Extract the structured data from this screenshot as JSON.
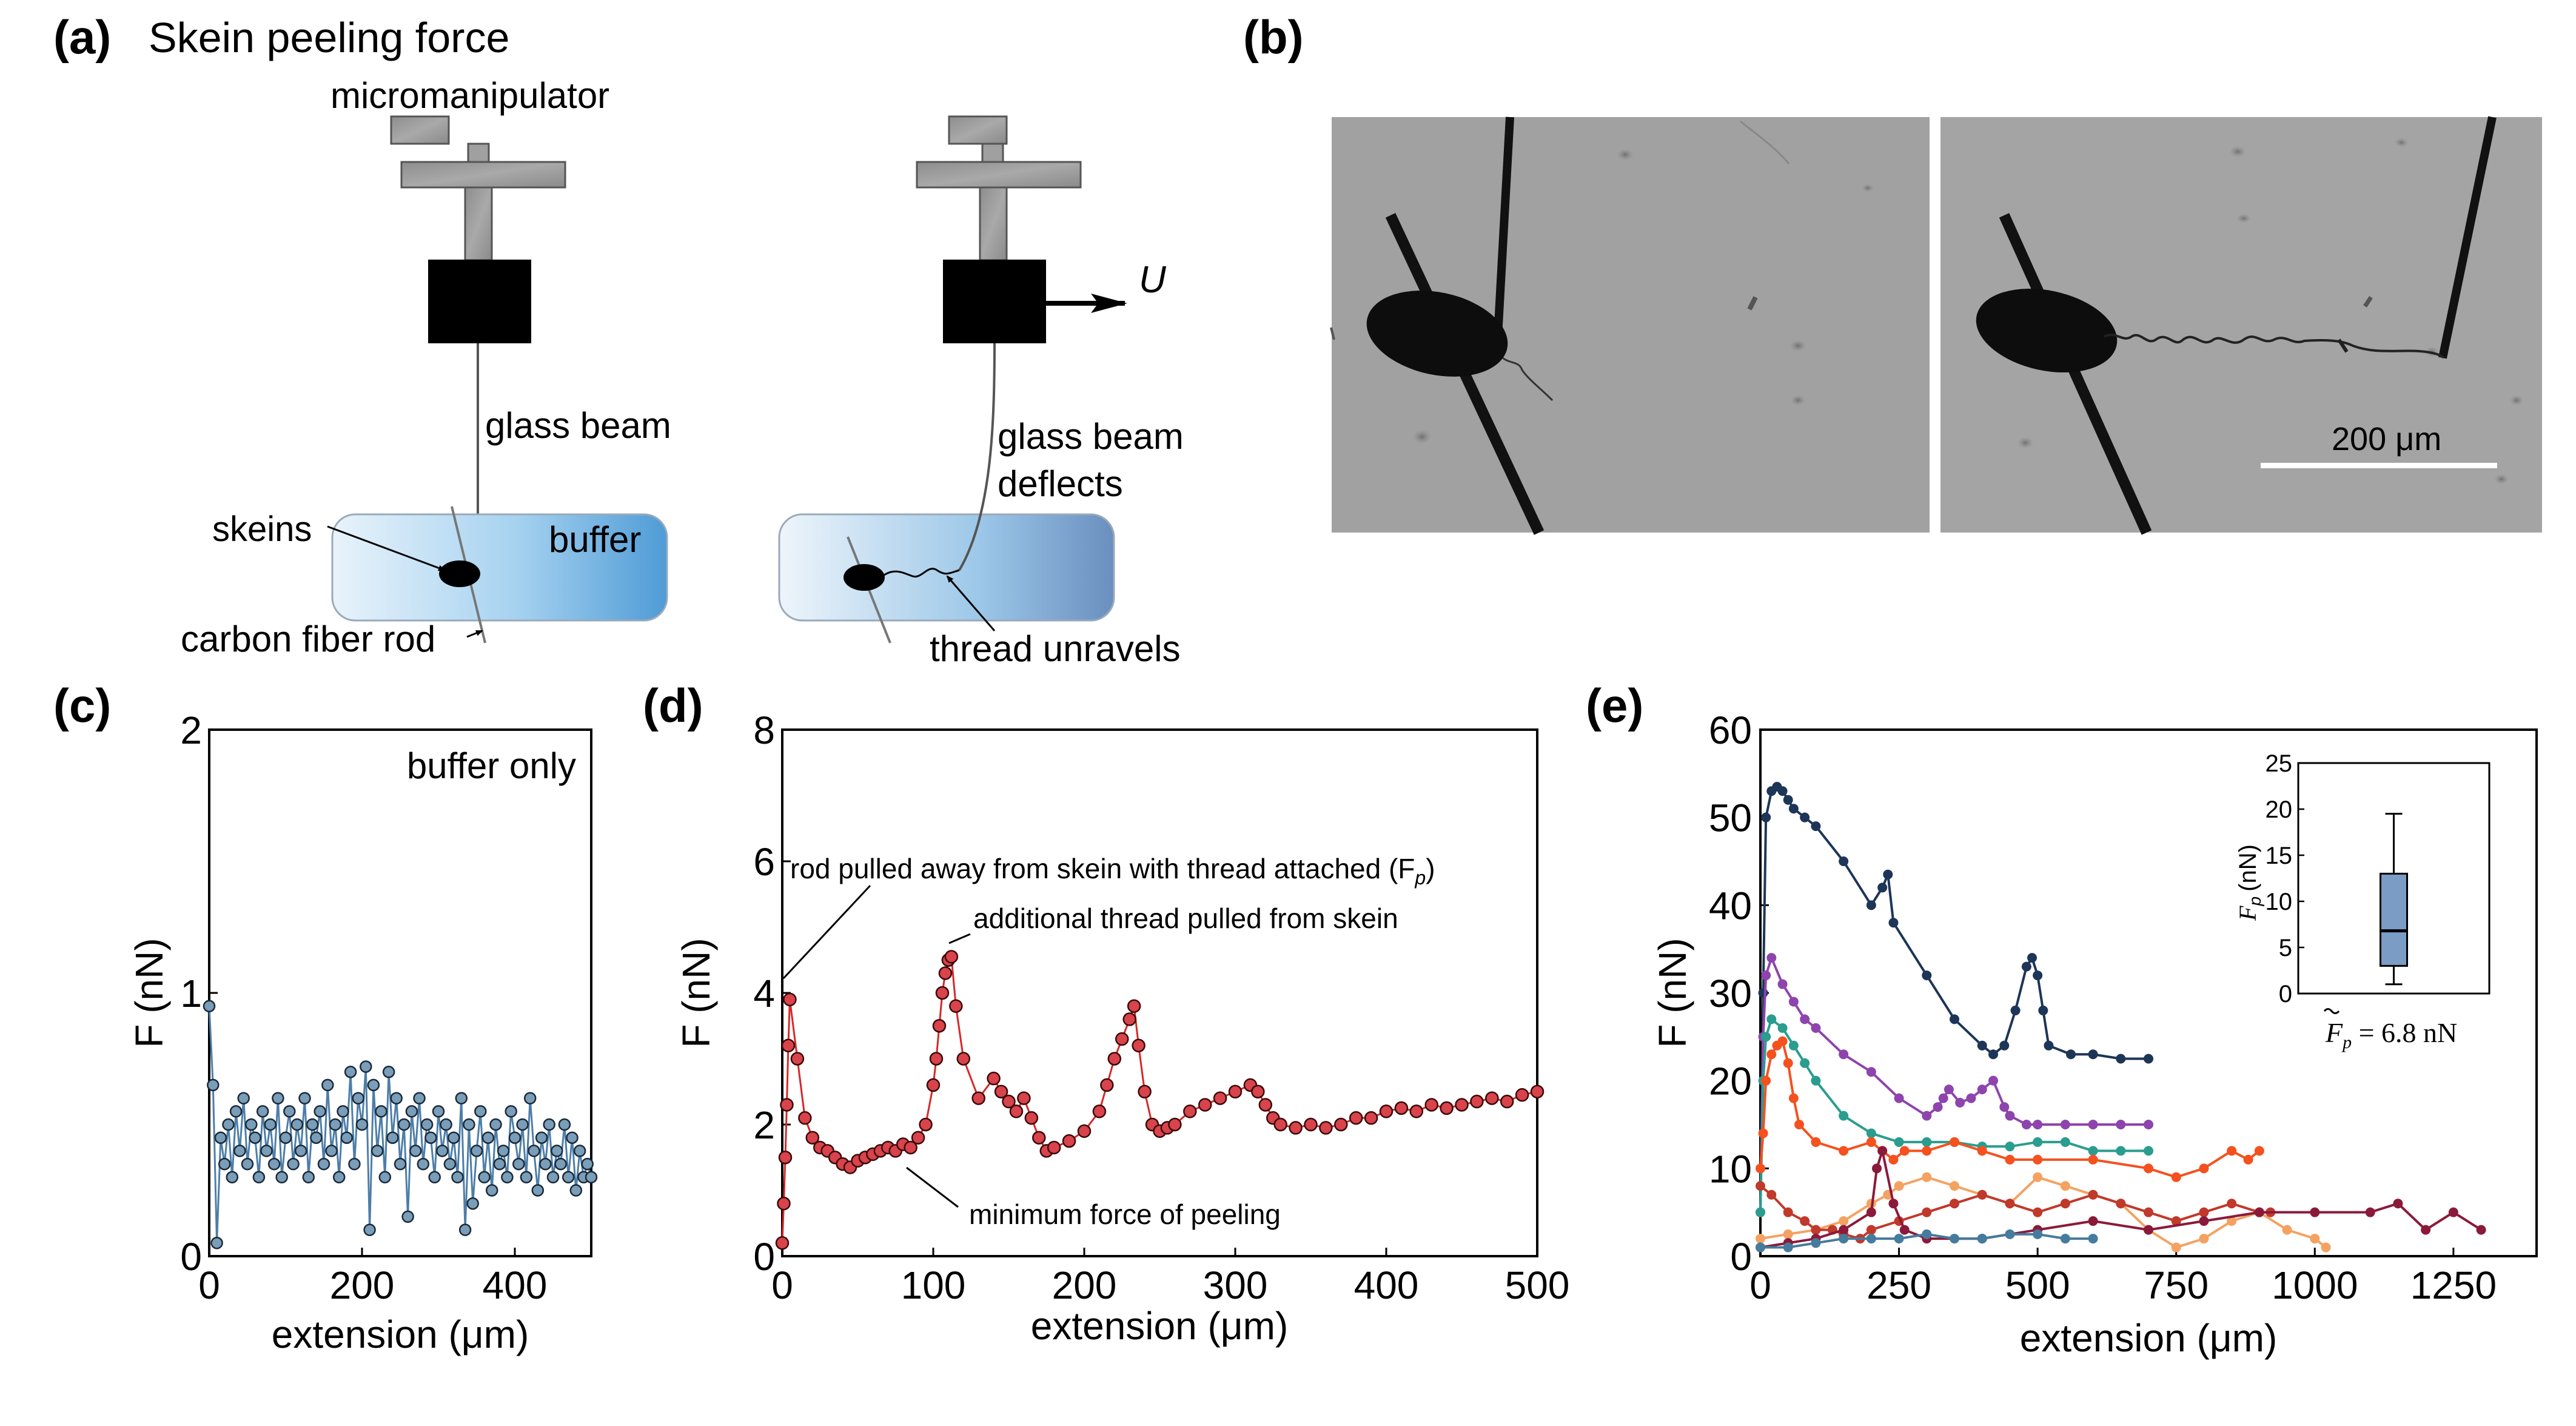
{
  "figure": {
    "panel_a": {
      "label": "(a)",
      "title": "Skein peeling force",
      "micromanipulator": "micromanipulator",
      "glass_beam": "glass beam",
      "skeins": "skeins",
      "buffer": "buffer",
      "carbon_fiber_rod": "carbon fiber rod",
      "velocity": "U",
      "glass_beam_deflects_1": "glass beam",
      "glass_beam_deflects_2": "deflects",
      "thread_unravels": "thread unravels"
    },
    "panel_b": {
      "label": "(b)",
      "scale_bar": "200 μm"
    },
    "colors": {
      "c_marker": "#7a9db8",
      "d_marker": "#d9434b",
      "buffer_gradient_start": "#e6f2fa",
      "buffer_gradient_end": "#5aa6dc"
    }
  },
  "chart_data": [
    {
      "panel": "(c)",
      "type": "line",
      "title": "",
      "annotation": "buffer only",
      "xlabel": "extension (μm)",
      "ylabel": "F (nN)",
      "xlim": [
        0,
        500
      ],
      "ylim": [
        0,
        2
      ],
      "xticks": [
        "0",
        "200",
        "400"
      ],
      "yticks": [
        "0",
        "1",
        "2"
      ],
      "series": [
        {
          "name": "buffer only",
          "x": [
            0,
            5,
            10,
            15,
            20,
            25,
            30,
            35,
            40,
            45,
            50,
            55,
            60,
            65,
            70,
            75,
            80,
            85,
            90,
            95,
            100,
            105,
            110,
            115,
            120,
            125,
            130,
            135,
            140,
            145,
            150,
            155,
            160,
            165,
            170,
            175,
            180,
            185,
            190,
            195,
            200,
            205,
            210,
            215,
            220,
            225,
            230,
            235,
            240,
            245,
            250,
            255,
            260,
            265,
            270,
            275,
            280,
            285,
            290,
            295,
            300,
            305,
            310,
            315,
            320,
            325,
            330,
            335,
            340,
            345,
            350,
            355,
            360,
            365,
            370,
            375,
            380,
            385,
            390,
            395,
            400,
            405,
            410,
            415,
            420,
            425,
            430,
            435,
            440,
            445,
            450,
            455,
            460,
            465,
            470,
            475,
            480,
            485,
            490,
            495,
            500
          ],
          "y": [
            0.95,
            0.65,
            0.05,
            0.45,
            0.35,
            0.5,
            0.3,
            0.55,
            0.4,
            0.6,
            0.35,
            0.5,
            0.45,
            0.3,
            0.55,
            0.4,
            0.5,
            0.35,
            0.6,
            0.3,
            0.45,
            0.55,
            0.35,
            0.5,
            0.4,
            0.6,
            0.3,
            0.5,
            0.45,
            0.55,
            0.35,
            0.65,
            0.4,
            0.5,
            0.3,
            0.55,
            0.45,
            0.7,
            0.35,
            0.6,
            0.5,
            0.72,
            0.1,
            0.65,
            0.4,
            0.55,
            0.3,
            0.7,
            0.45,
            0.6,
            0.35,
            0.5,
            0.15,
            0.55,
            0.4,
            0.6,
            0.35,
            0.5,
            0.45,
            0.3,
            0.55,
            0.4,
            0.5,
            0.35,
            0.45,
            0.3,
            0.6,
            0.1,
            0.5,
            0.2,
            0.4,
            0.55,
            0.3,
            0.45,
            0.25,
            0.5,
            0.35,
            0.4,
            0.3,
            0.55,
            0.45,
            0.35,
            0.5,
            0.3,
            0.6,
            0.4,
            0.25,
            0.45,
            0.35,
            0.5,
            0.3,
            0.4,
            0.35,
            0.5,
            0.3,
            0.45,
            0.25,
            0.4,
            0.3,
            0.35,
            0.3
          ]
        }
      ]
    },
    {
      "panel": "(d)",
      "type": "line",
      "title": "",
      "xlabel": "extension (μm)",
      "ylabel": "F (nN)",
      "xlim": [
        0,
        500
      ],
      "ylim": [
        0,
        8
      ],
      "xticks": [
        "0",
        "100",
        "200",
        "300",
        "400",
        "500"
      ],
      "yticks": [
        "0",
        "2",
        "4",
        "6",
        "8"
      ],
      "annotations": [
        "rod pulled away from skein with thread attached (F",
        "p",
        ")",
        "additional thread pulled from skein",
        "minimum force of peeling"
      ],
      "series": [
        {
          "name": "peeling",
          "x": [
            0,
            1,
            2,
            3,
            4,
            5,
            10,
            15,
            20,
            25,
            30,
            35,
            40,
            45,
            50,
            55,
            60,
            65,
            70,
            75,
            80,
            85,
            90,
            95,
            100,
            102,
            104,
            106,
            108,
            110,
            112,
            115,
            120,
            130,
            140,
            145,
            150,
            155,
            160,
            165,
            170,
            175,
            180,
            190,
            200,
            210,
            215,
            220,
            225,
            230,
            233,
            236,
            240,
            245,
            250,
            255,
            260,
            270,
            280,
            290,
            300,
            310,
            315,
            320,
            325,
            330,
            340,
            350,
            360,
            370,
            380,
            390,
            400,
            410,
            420,
            430,
            440,
            450,
            460,
            470,
            480,
            490,
            500
          ],
          "y": [
            0.2,
            0.8,
            1.5,
            2.3,
            3.2,
            3.9,
            3.0,
            2.1,
            1.8,
            1.65,
            1.6,
            1.5,
            1.4,
            1.35,
            1.45,
            1.5,
            1.55,
            1.6,
            1.65,
            1.6,
            1.7,
            1.65,
            1.8,
            2.0,
            2.6,
            3.0,
            3.5,
            4.0,
            4.3,
            4.5,
            4.55,
            3.8,
            3.0,
            2.4,
            2.7,
            2.5,
            2.35,
            2.2,
            2.4,
            2.1,
            1.8,
            1.6,
            1.65,
            1.75,
            1.9,
            2.2,
            2.6,
            3.0,
            3.3,
            3.6,
            3.8,
            3.2,
            2.5,
            2.0,
            1.9,
            1.95,
            2.0,
            2.2,
            2.3,
            2.4,
            2.5,
            2.6,
            2.5,
            2.3,
            2.1,
            2.0,
            1.95,
            2.0,
            1.95,
            2.0,
            2.1,
            2.1,
            2.2,
            2.25,
            2.2,
            2.3,
            2.25,
            2.3,
            2.35,
            2.4,
            2.35,
            2.45,
            2.5
          ]
        }
      ]
    },
    {
      "panel": "(e)",
      "type": "line",
      "title": "",
      "xlabel": "extension (μm)",
      "ylabel": "F (nN)",
      "xlim": [
        0,
        1400
      ],
      "ylim": [
        0,
        60
      ],
      "xticks": [
        "0",
        "250",
        "500",
        "750",
        "1000",
        "1250"
      ],
      "yticks": [
        "0",
        "10",
        "20",
        "30",
        "40",
        "50",
        "60"
      ],
      "series": [
        {
          "name": "navy",
          "color": "#1d3557",
          "x": [
            0,
            5,
            10,
            20,
            30,
            40,
            50,
            60,
            80,
            100,
            150,
            200,
            220,
            230,
            240,
            300,
            350,
            400,
            420,
            440,
            460,
            480,
            490,
            500,
            510,
            520,
            560,
            600,
            650,
            700
          ],
          "y": [
            5,
            30,
            50,
            53,
            53.5,
            53,
            52,
            51,
            50,
            49,
            45,
            40,
            42,
            43.5,
            38,
            32,
            27,
            24,
            23,
            24,
            28,
            33,
            34,
            32,
            28,
            24,
            23,
            23,
            22.5,
            22.5
          ]
        },
        {
          "name": "purple",
          "color": "#8e44ad",
          "x": [
            0,
            5,
            10,
            20,
            40,
            60,
            80,
            100,
            150,
            200,
            250,
            300,
            320,
            330,
            340,
            360,
            380,
            400,
            420,
            440,
            450,
            480,
            500,
            550,
            600,
            650,
            700
          ],
          "y": [
            5,
            25,
            32,
            34,
            31,
            29,
            27,
            26,
            23,
            21,
            18,
            16,
            17,
            18,
            19,
            17.5,
            18,
            19,
            20,
            17,
            16,
            15,
            15,
            15,
            15,
            15,
            15
          ]
        },
        {
          "name": "teal",
          "color": "#2a9d8f",
          "x": [
            0,
            5,
            10,
            20,
            40,
            60,
            80,
            100,
            150,
            200,
            250,
            300,
            350,
            400,
            450,
            500,
            550,
            600,
            650,
            700
          ],
          "y": [
            5,
            20,
            25,
            27,
            26,
            24,
            22,
            20,
            16,
            14,
            13,
            13,
            13,
            12.5,
            12.5,
            13,
            13,
            12,
            12,
            12
          ]
        },
        {
          "name": "orange-red",
          "color": "#f4511e",
          "x": [
            0,
            5,
            10,
            20,
            30,
            40,
            50,
            60,
            70,
            100,
            150,
            200,
            220,
            240,
            260,
            300,
            350,
            400,
            450,
            500,
            600,
            700,
            750,
            800,
            850,
            880,
            900
          ],
          "y": [
            10,
            14,
            20,
            23,
            24,
            24.5,
            22,
            18,
            15,
            13,
            12,
            13,
            12,
            11,
            12,
            12,
            13,
            12,
            11,
            11,
            11,
            10,
            9,
            10,
            12,
            11,
            12
          ]
        },
        {
          "name": "light-orange",
          "color": "#f4a261",
          "x": [
            0,
            50,
            100,
            150,
            200,
            230,
            250,
            300,
            350,
            400,
            450,
            500,
            550,
            600,
            650,
            700,
            750,
            800,
            850,
            900,
            950,
            1000,
            1020
          ],
          "y": [
            2,
            2.5,
            3,
            4,
            6,
            7,
            8,
            9,
            8,
            7,
            6,
            9,
            8,
            7,
            6,
            3,
            1,
            2,
            4,
            5,
            3,
            2,
            1
          ]
        },
        {
          "name": "crimson",
          "color": "#c0392b",
          "x": [
            0,
            20,
            50,
            80,
            100,
            130,
            150,
            180,
            200,
            250,
            300,
            350,
            400,
            450,
            500,
            550,
            600,
            650,
            700,
            750,
            800,
            850,
            900,
            920
          ],
          "y": [
            8,
            7,
            5,
            4,
            3,
            3,
            2.5,
            2,
            3,
            4,
            5,
            6,
            7,
            6,
            5,
            6,
            7,
            6,
            5,
            4,
            5,
            6,
            5,
            5
          ]
        },
        {
          "name": "maroon",
          "color": "#8b1a3a",
          "x": [
            0,
            50,
            100,
            150,
            200,
            210,
            220,
            240,
            260,
            300,
            400,
            500,
            600,
            700,
            800,
            900,
            1000,
            1100,
            1150,
            1200,
            1250,
            1300
          ],
          "y": [
            1,
            1.5,
            2,
            3,
            5,
            10,
            12,
            6,
            3,
            2,
            2,
            3,
            4,
            3,
            4,
            5,
            5,
            5,
            6,
            3,
            5,
            3
          ]
        },
        {
          "name": "steel-blue",
          "color": "#457b9d",
          "x": [
            0,
            50,
            100,
            150,
            200,
            250,
            300,
            350,
            400,
            450,
            500,
            550,
            600
          ],
          "y": [
            1,
            1,
            1.5,
            2,
            2,
            2,
            2.5,
            2,
            2,
            2.5,
            2.5,
            2,
            2
          ]
        }
      ],
      "inset": {
        "type": "box",
        "ylabel": "F",
        "ylabel_sub": "p",
        "ylabel_unit": "(nN)",
        "ylim": [
          0,
          25
        ],
        "yticks": [
          "0",
          "5",
          "10",
          "15",
          "20",
          "25"
        ],
        "box": {
          "min": 1,
          "q1": 3,
          "median": 6.8,
          "q3": 13,
          "max": 19.5,
          "color": "#7b9cc4"
        },
        "caption_symbol": "F",
        "caption_sub": "p",
        "caption_value": " = 6.8 nN"
      }
    }
  ]
}
